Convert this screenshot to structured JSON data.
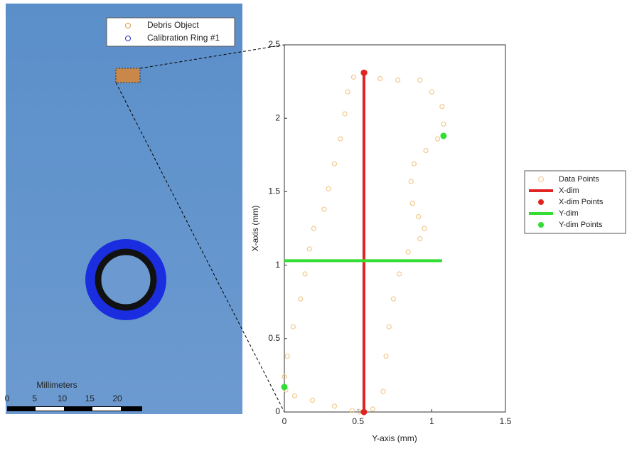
{
  "image_panel": {
    "legend": [
      "Debris Object",
      "Calibration Ring #1"
    ],
    "scale_bar": {
      "label": "Millimeters",
      "ticks": [
        0,
        5,
        10,
        15,
        20
      ]
    }
  },
  "chart_data": {
    "type": "scatter",
    "xlabel": "Y-axis (mm)",
    "ylabel": "X-axis (mm)",
    "xlim": [
      0,
      1.5
    ],
    "xticks": [
      0,
      0.5,
      1,
      1.5
    ],
    "ylim": [
      0,
      2.5
    ],
    "yticks": [
      0,
      0.5,
      1,
      1.5,
      2,
      2.5
    ],
    "legend": "outside-right",
    "series": [
      {
        "name": "Data Points",
        "color": "#f2c98e",
        "mode": "open-markers",
        "x": [
          0.51,
          0.6,
          0.67,
          0.69,
          0.71,
          0.74,
          0.78,
          0.84,
          0.92,
          0.95,
          0.91,
          0.87,
          0.86,
          0.88,
          0.96,
          1.04,
          1.08,
          1.07,
          1.0,
          0.92,
          0.77,
          0.65,
          0.55,
          0.47,
          0.43,
          0.41,
          0.38,
          0.34,
          0.3,
          0.27,
          0.2,
          0.17,
          0.14,
          0.11,
          0.06,
          0.02,
          0.0,
          0.01,
          0.07,
          0.19,
          0.34,
          0.46
        ],
        "values": [
          0.0,
          0.02,
          0.14,
          0.38,
          0.58,
          0.77,
          0.94,
          1.09,
          1.18,
          1.25,
          1.33,
          1.42,
          1.57,
          1.69,
          1.78,
          1.86,
          1.96,
          2.08,
          2.18,
          2.26,
          2.26,
          2.27,
          2.31,
          2.28,
          2.18,
          2.03,
          1.86,
          1.69,
          1.52,
          1.38,
          1.25,
          1.11,
          0.94,
          0.77,
          0.58,
          0.38,
          0.24,
          0.15,
          0.11,
          0.08,
          0.04,
          0.01
        ]
      },
      {
        "name": "X-dim",
        "color": "#e02424",
        "mode": "line",
        "x": [
          0.54,
          0.54
        ],
        "values": [
          0,
          2.31
        ]
      },
      {
        "name": "X-dim Points",
        "color": "#e02424",
        "mode": "markers",
        "x": [
          0.54,
          0.54
        ],
        "values": [
          0,
          2.31
        ]
      },
      {
        "name": "Y-dim",
        "color": "#33dd33",
        "mode": "line",
        "x": [
          0,
          1.07
        ],
        "values": [
          1.03,
          1.03
        ]
      },
      {
        "name": "Y-dim Points",
        "color": "#33dd33",
        "mode": "markers",
        "x": [
          0,
          1.08
        ],
        "values": [
          0.17,
          1.88
        ]
      }
    ]
  }
}
